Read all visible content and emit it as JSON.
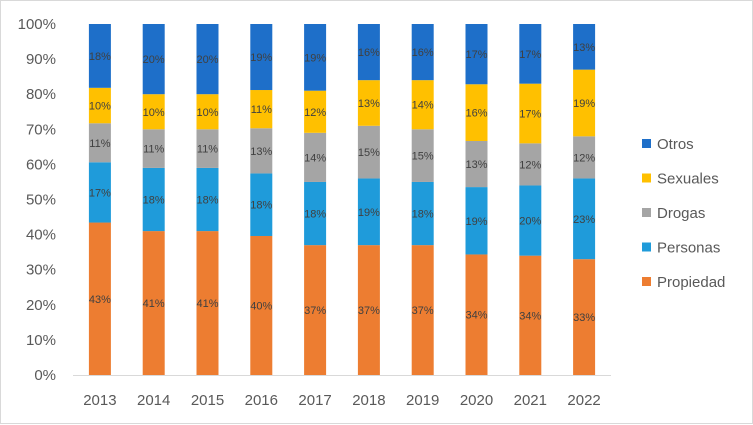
{
  "chart_data": {
    "type": "bar",
    "stacked": true,
    "percent_stacked": true,
    "title": "",
    "xlabel": "",
    "ylabel": "",
    "ylim": [
      0,
      100
    ],
    "y_ticks": [
      "0%",
      "10%",
      "20%",
      "30%",
      "40%",
      "50%",
      "60%",
      "70%",
      "80%",
      "90%",
      "100%"
    ],
    "categories": [
      "2013",
      "2014",
      "2015",
      "2016",
      "2017",
      "2018",
      "2019",
      "2020",
      "2021",
      "2022"
    ],
    "series": [
      {
        "name": "Propiedad",
        "color": "#ED7D31",
        "values": [
          43,
          41,
          41,
          40,
          37,
          37,
          37,
          34,
          34,
          33
        ]
      },
      {
        "name": "Personas",
        "color": "#1F9BDA",
        "values": [
          17,
          18,
          18,
          18,
          18,
          19,
          18,
          19,
          20,
          23
        ]
      },
      {
        "name": "Drogas",
        "color": "#A5A5A5",
        "values": [
          11,
          11,
          11,
          13,
          14,
          15,
          15,
          13,
          12,
          12
        ]
      },
      {
        "name": "Sexuales",
        "color": "#FFC000",
        "values": [
          10,
          10,
          10,
          11,
          12,
          13,
          14,
          16,
          17,
          19
        ]
      },
      {
        "name": "Otros",
        "color": "#1E6FC9",
        "values": [
          18,
          20,
          20,
          19,
          19,
          16,
          16,
          17,
          17,
          13
        ]
      }
    ],
    "data_label_suffix": "%",
    "legend": {
      "position": "right",
      "order": [
        "Otros",
        "Sexuales",
        "Drogas",
        "Personas",
        "Propiedad"
      ]
    },
    "grid": false
  }
}
